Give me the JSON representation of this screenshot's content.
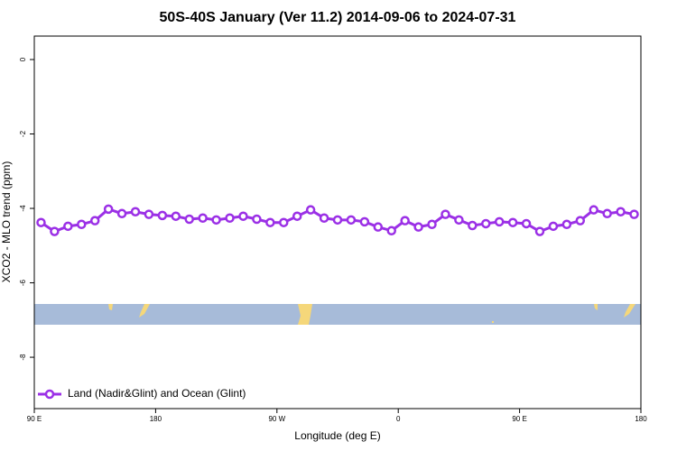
{
  "chart_data": {
    "type": "line",
    "title": "50S-40S January (Ver 11.2)   2014-09-06 to 2024-07-31",
    "xlabel": "Longitude (deg E)",
    "ylabel": "XCO2 - MLO trend (ppm)",
    "x": [
      95,
      105,
      115,
      125,
      135,
      145,
      155,
      165,
      175,
      185,
      195,
      205,
      215,
      225,
      235,
      245,
      255,
      265,
      275,
      285,
      295,
      305,
      315,
      325,
      335,
      345,
      355,
      365,
      375,
      385,
      395,
      405,
      415,
      425,
      435,
      445,
      455,
      465,
      475,
      485,
      495,
      505,
      515,
      525,
      535
    ],
    "series": [
      {
        "name": "Land (Nadir&Glint) and Ocean (Glint)",
        "color": "#9b30e6",
        "values": [
          -4.38,
          -4.62,
          -4.48,
          -4.43,
          -4.33,
          -4.02,
          -4.14,
          -4.09,
          -4.16,
          -4.19,
          -4.21,
          -4.29,
          -4.26,
          -4.31,
          -4.26,
          -4.21,
          -4.29,
          -4.38,
          -4.38,
          -4.21,
          -4.04,
          -4.26,
          -4.31,
          -4.31,
          -4.36,
          -4.5,
          -4.6,
          -4.33,
          -4.5,
          -4.43,
          -4.16,
          -4.31,
          -4.46,
          -4.41,
          -4.36,
          -4.38,
          -4.41,
          -4.62,
          -4.48,
          -4.43,
          -4.33,
          -4.04,
          -4.14,
          -4.09,
          -4.16
        ]
      }
    ],
    "xlim": [
      90,
      540
    ],
    "xticks": [
      {
        "value": 90,
        "label": "90 E"
      },
      {
        "value": 180,
        "label": "180"
      },
      {
        "value": 270,
        "label": "90 W"
      },
      {
        "value": 360,
        "label": "0"
      },
      {
        "value": 450,
        "label": "90 E"
      },
      {
        "value": 540,
        "label": "180"
      }
    ],
    "ylim": [
      -9.38,
      0.63
    ],
    "yticks": [
      0,
      -2,
      -4,
      -6,
      -8
    ],
    "legend": "bottom-left"
  }
}
